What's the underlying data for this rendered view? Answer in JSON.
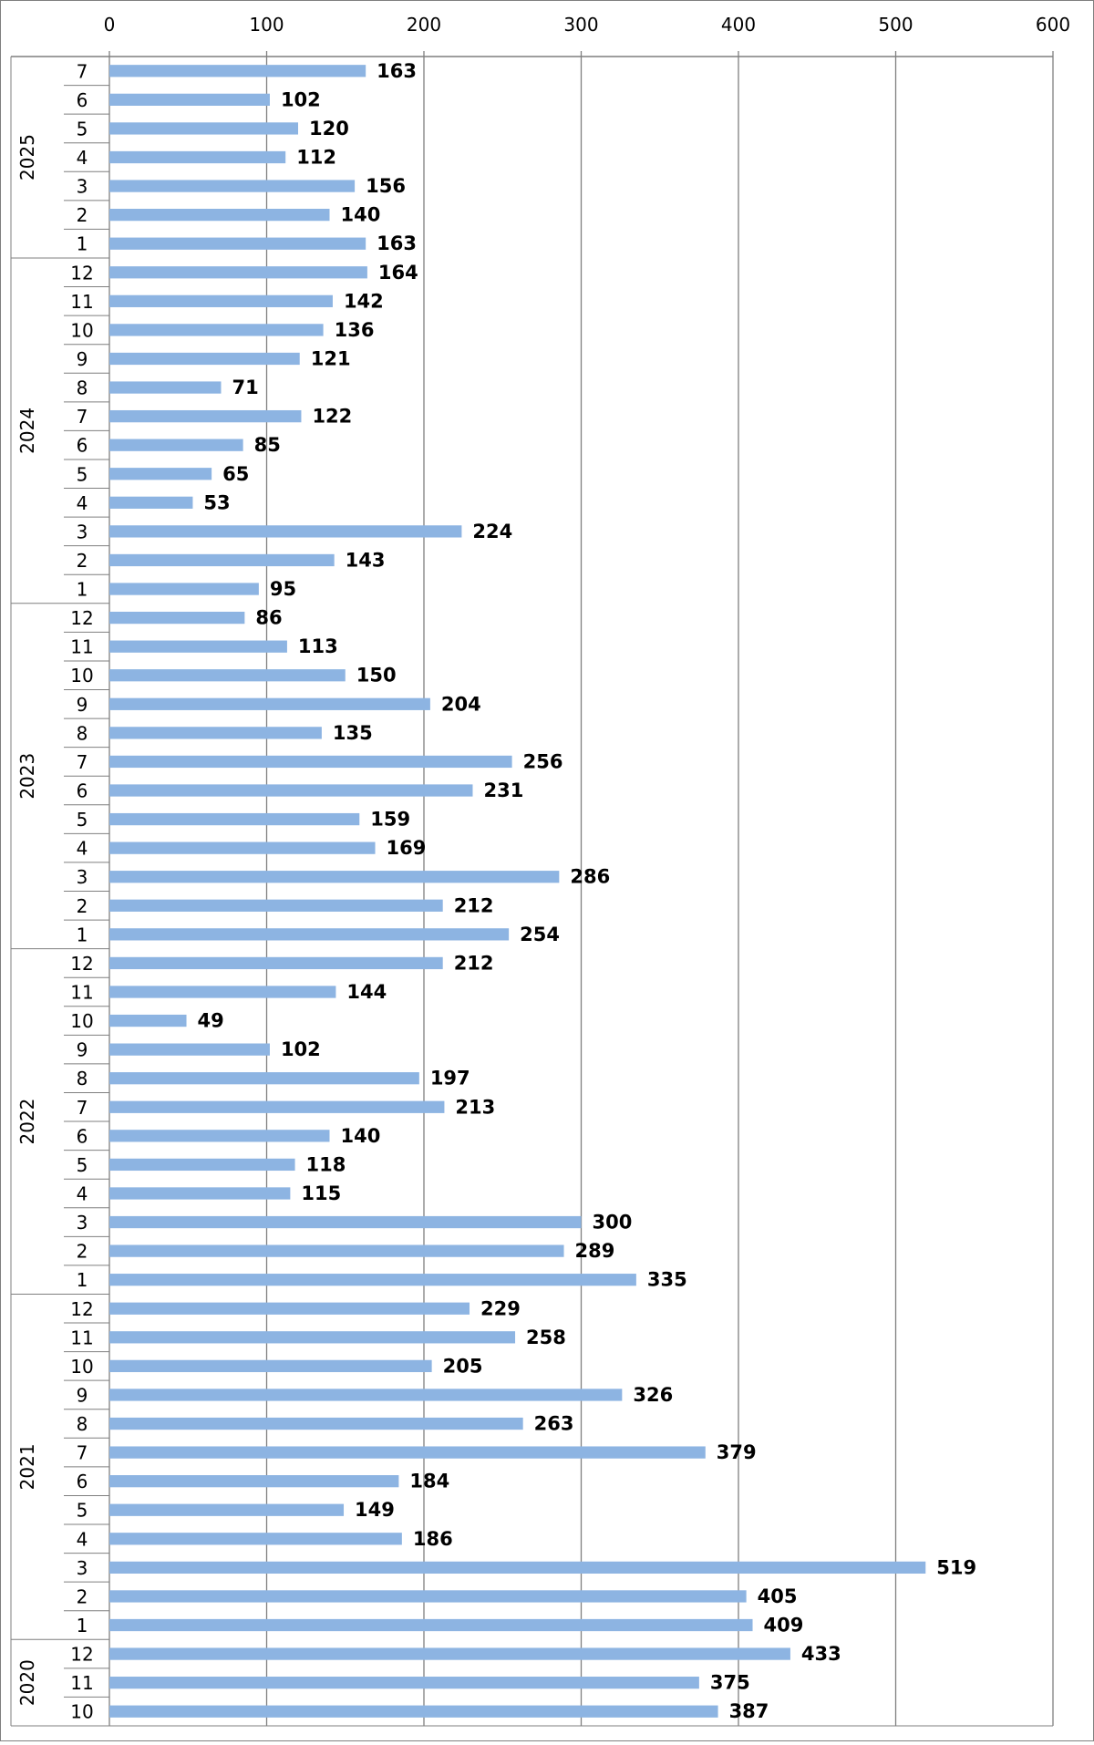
{
  "chart_data": {
    "type": "bar",
    "orientation": "horizontal",
    "title": "",
    "xlabel": "",
    "ylabel": "",
    "xlim": [
      0,
      600
    ],
    "x_ticks": [
      "0",
      "100",
      "200",
      "300",
      "400",
      "500",
      "600"
    ],
    "x_axis_position": "top",
    "grid": "vertical",
    "legend": "none",
    "bar_color": "#8DB4E2",
    "groups": [
      {
        "label": "2025",
        "categories": [
          "7",
          "6",
          "5",
          "4",
          "3",
          "2",
          "1"
        ],
        "values": [
          163,
          102,
          120,
          112,
          156,
          140,
          163
        ]
      },
      {
        "label": "2024",
        "categories": [
          "12",
          "11",
          "10",
          "9",
          "8",
          "7",
          "6",
          "5",
          "4",
          "3",
          "2",
          "1"
        ],
        "values": [
          164,
          142,
          136,
          121,
          71,
          122,
          85,
          65,
          53,
          224,
          143,
          95
        ]
      },
      {
        "label": "2023",
        "categories": [
          "12",
          "11",
          "10",
          "9",
          "8",
          "7",
          "6",
          "5",
          "4",
          "3",
          "2",
          "1"
        ],
        "values": [
          86,
          113,
          150,
          204,
          135,
          256,
          231,
          159,
          169,
          286,
          212,
          254
        ]
      },
      {
        "label": "2022",
        "categories": [
          "12",
          "11",
          "10",
          "9",
          "8",
          "7",
          "6",
          "5",
          "4",
          "3",
          "2",
          "1"
        ],
        "values": [
          212,
          144,
          49,
          102,
          197,
          213,
          140,
          118,
          115,
          300,
          289,
          335
        ]
      },
      {
        "label": "2021",
        "categories": [
          "12",
          "11",
          "10",
          "9",
          "8",
          "7",
          "6",
          "5",
          "4",
          "3",
          "2",
          "1"
        ],
        "values": [
          229,
          258,
          205,
          326,
          263,
          379,
          184,
          149,
          186,
          519,
          405,
          409
        ]
      },
      {
        "label": "2020",
        "categories": [
          "12",
          "11",
          "10"
        ],
        "values": [
          433,
          375,
          387
        ]
      }
    ]
  }
}
